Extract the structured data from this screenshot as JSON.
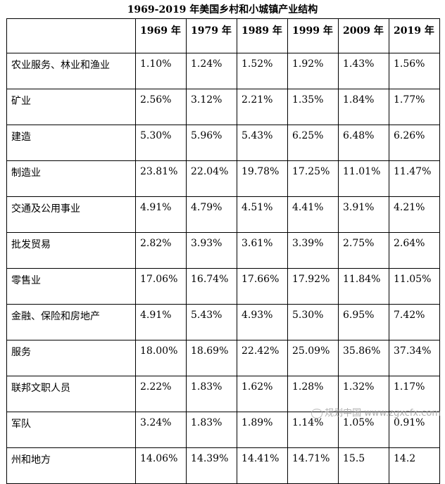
{
  "title": "1969-2019 年美国乡村和小城镇产业结构",
  "table": {
    "headers": [
      "",
      "1969 年",
      "1979 年",
      "1989 年",
      "1999 年",
      "2009 年",
      "2019 年"
    ],
    "rows": [
      {
        "label": "农业服务、林业和渔业",
        "values": [
          "1.10%",
          "1.24%",
          "1.52%",
          "1.92%",
          "1.43%",
          "1.56%"
        ]
      },
      {
        "label": "矿业",
        "values": [
          "2.56%",
          "3.12%",
          "2.21%",
          "1.35%",
          "1.84%",
          "1.77%"
        ]
      },
      {
        "label": "建造",
        "values": [
          "5.30%",
          "5.96%",
          "5.43%",
          "6.25%",
          "6.48%",
          "6.26%"
        ]
      },
      {
        "label": "制造业",
        "values": [
          "23.81%",
          "22.04%",
          "19.78%",
          "17.25%",
          "11.01%",
          "11.47%"
        ]
      },
      {
        "label": "交通及公用事业",
        "values": [
          "4.91%",
          "4.79%",
          "4.51%",
          "4.41%",
          "3.91%",
          "4.21%"
        ]
      },
      {
        "label": "批发贸易",
        "values": [
          "2.82%",
          "3.93%",
          "3.61%",
          "3.39%",
          "2.75%",
          "2.64%"
        ]
      },
      {
        "label": "零售业",
        "values": [
          "17.06%",
          "16.74%",
          "17.66%",
          "17.92%",
          "11.84%",
          "11.05%"
        ]
      },
      {
        "label": "金融、保险和房地产",
        "values": [
          "4.91%",
          "5.43%",
          "4.93%",
          "5.30%",
          "6.95%",
          "7.42%"
        ]
      },
      {
        "label": "服务",
        "values": [
          "18.00%",
          "18.69%",
          "22.42%",
          "25.09%",
          "35.86%",
          "37.34%"
        ]
      },
      {
        "label": "联邦文职人员",
        "values": [
          "2.22%",
          "1.83%",
          "1.62%",
          "1.28%",
          "1.32%",
          "1.17%"
        ]
      },
      {
        "label": "军队",
        "values": [
          "3.24%",
          "1.83%",
          "1.89%",
          "1.14%",
          "1.05%",
          "0.91%"
        ]
      },
      {
        "label": "州和地方",
        "values": [
          "14.06%",
          "14.39%",
          "14.41%",
          "14.71%",
          "15.5",
          "14.2"
        ]
      }
    ]
  },
  "watermark": {
    "text": "规划中国",
    "url_text": "www.zgxcfx.com",
    "icon": "wechat-circle-icon"
  }
}
